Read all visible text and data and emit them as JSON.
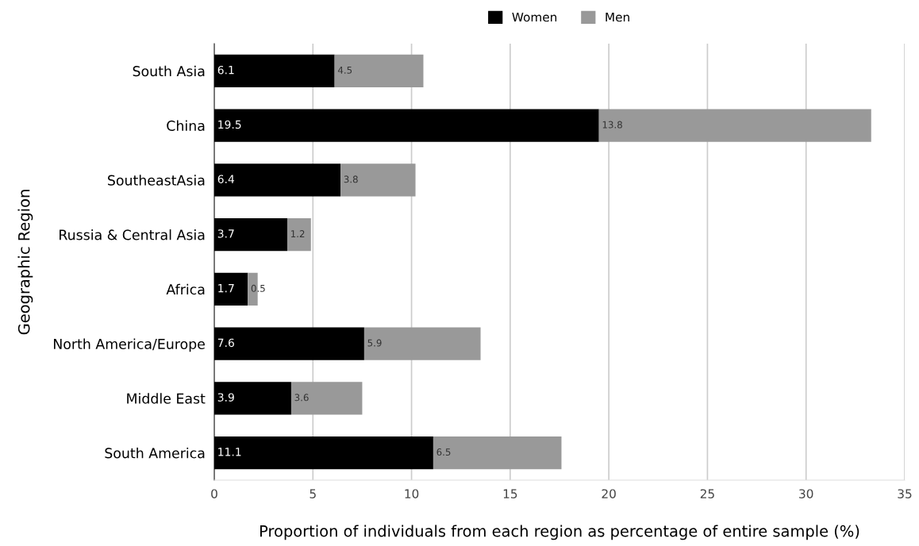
{
  "chart_data": {
    "type": "bar",
    "orientation": "horizontal",
    "stacked": true,
    "categories": [
      "South Asia",
      "China",
      "SoutheastAsia",
      "Russia & Central Asia",
      "Africa",
      "North America/Europe",
      "Middle East",
      "South America"
    ],
    "series": [
      {
        "name": "Women",
        "color": "#000000",
        "values": [
          6.1,
          19.5,
          6.4,
          3.7,
          1.7,
          7.6,
          3.9,
          11.1
        ]
      },
      {
        "name": "Men",
        "color": "#999999",
        "values": [
          4.5,
          13.8,
          3.8,
          1.2,
          0.5,
          5.9,
          3.6,
          6.5
        ]
      }
    ],
    "xlabel": "Proportion of individuals from each region as percentage of entire sample (%)",
    "ylabel": "Geographic Region",
    "xlim": [
      0,
      35
    ],
    "xticks": [
      0,
      5,
      10,
      15,
      20,
      25,
      30,
      35
    ],
    "grid": "x",
    "legend": "top",
    "data_labels": true
  }
}
